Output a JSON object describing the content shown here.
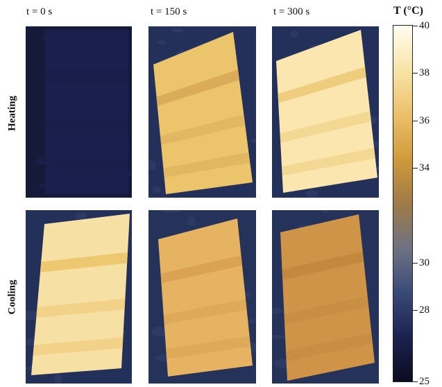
{
  "columns": [
    {
      "label": "t = 0 s"
    },
    {
      "label": "t = 150 s"
    },
    {
      "label": "t = 300 s"
    }
  ],
  "rows": [
    {
      "label": "Heating"
    },
    {
      "label": "Cooling"
    }
  ],
  "colorbar": {
    "title": "T (°C)",
    "min": 25,
    "max": 40,
    "ticks": [
      {
        "value": 40,
        "label": "40"
      },
      {
        "value": 38,
        "label": "38"
      },
      {
        "value": 36,
        "label": "36"
      },
      {
        "value": 34,
        "label": "34"
      },
      {
        "value": 30,
        "label": "30"
      },
      {
        "value": 28,
        "label": "28"
      },
      {
        "value": 25,
        "label": "25"
      }
    ],
    "colors": [
      "#0b0b1e",
      "#1c2250",
      "#3a4a78",
      "#6f7282",
      "#a07a48",
      "#cf9a3a",
      "#ecc06a",
      "#f8e4a8",
      "#fffcf2"
    ]
  },
  "panels": [
    {
      "row": "Heating",
      "time": "t = 0 s",
      "sample_color": "#1b1f4d",
      "band_color": "#1a1e48",
      "background_color": "#15193a"
    },
    {
      "row": "Heating",
      "time": "t = 150 s",
      "sample_color": "#ecc46c",
      "band_color": "#d8aa58",
      "background_color": "#23305a"
    },
    {
      "row": "Heating",
      "time": "t = 300 s",
      "sample_color": "#fae6ae",
      "band_color": "#ecca7a",
      "background_color": "#23305a"
    },
    {
      "row": "Cooling",
      "time": "t = 0 s",
      "sample_color": "#f7e0a4",
      "band_color": "#ecc46c",
      "background_color": "#23305a"
    },
    {
      "row": "Cooling",
      "time": "t = 150 s",
      "sample_color": "#e6b362",
      "band_color": "#d8a052",
      "background_color": "#253259"
    },
    {
      "row": "Cooling",
      "time": "t = 300 s",
      "sample_color": "#cf9448",
      "band_color": "#c2873e",
      "background_color": "#253259"
    }
  ]
}
